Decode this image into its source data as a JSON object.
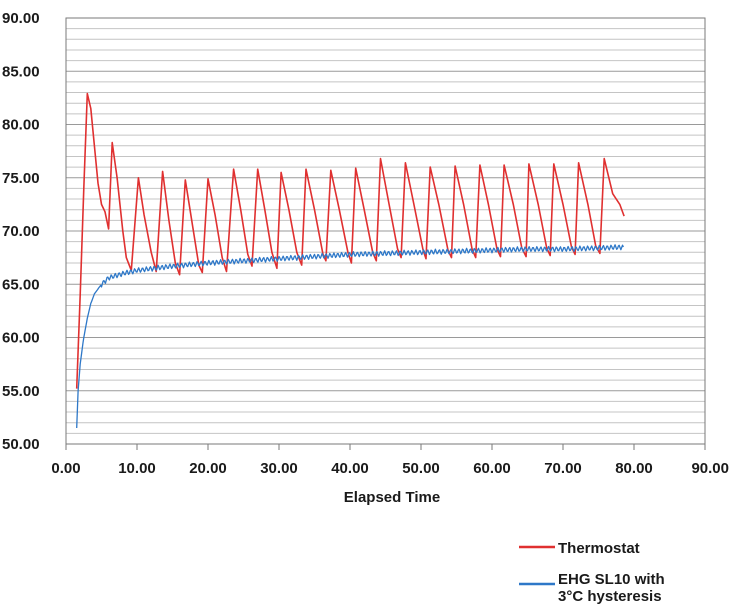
{
  "chart_data": {
    "type": "line",
    "title": "",
    "xlabel": "Elapsed Time",
    "ylabel": "",
    "xlim": [
      0,
      90
    ],
    "ylim": [
      50,
      90
    ],
    "x_major_step": 10,
    "y_major_step": 5,
    "y_minor_step": 1,
    "grid": true,
    "legend_position": "bottom-right",
    "x_tick_labels": [
      "0.00",
      "10.00",
      "20.00",
      "30.00",
      "40.00",
      "50.00",
      "60.00",
      "70.00",
      "80.00",
      "90.00"
    ],
    "y_tick_labels": [
      "50.00",
      "55.00",
      "60.00",
      "65.00",
      "70.00",
      "75.00",
      "80.00",
      "85.00",
      "90.00"
    ],
    "series": [
      {
        "name": "Thermostat",
        "color": "#e03030",
        "points": [
          [
            1.5,
            55.2
          ],
          [
            2.0,
            64.0
          ],
          [
            2.5,
            74.0
          ],
          [
            3.0,
            82.9
          ],
          [
            3.5,
            81.5
          ],
          [
            4.0,
            78.0
          ],
          [
            4.5,
            74.5
          ],
          [
            5.0,
            72.5
          ],
          [
            5.5,
            71.8
          ],
          [
            6.0,
            70.2
          ],
          [
            6.5,
            78.3
          ],
          [
            7.2,
            75.0
          ],
          [
            8.0,
            70.0
          ],
          [
            8.5,
            67.5
          ],
          [
            9.2,
            66.3
          ],
          [
            10.2,
            75.0
          ],
          [
            11.0,
            71.5
          ],
          [
            12.0,
            68.0
          ],
          [
            12.7,
            66.2
          ],
          [
            13.6,
            75.6
          ],
          [
            14.5,
            71.0
          ],
          [
            15.4,
            67.0
          ],
          [
            16.0,
            65.9
          ],
          [
            16.8,
            74.8
          ],
          [
            17.7,
            71.0
          ],
          [
            18.7,
            66.8
          ],
          [
            19.2,
            66.1
          ],
          [
            20.0,
            74.9
          ],
          [
            21.0,
            71.5
          ],
          [
            22.0,
            67.5
          ],
          [
            22.6,
            66.2
          ],
          [
            23.6,
            75.8
          ],
          [
            24.6,
            72.0
          ],
          [
            25.6,
            67.8
          ],
          [
            26.2,
            66.7
          ],
          [
            27.0,
            75.8
          ],
          [
            28.0,
            72.0
          ],
          [
            29.0,
            68.0
          ],
          [
            29.7,
            66.5
          ],
          [
            30.3,
            75.5
          ],
          [
            31.4,
            72.0
          ],
          [
            32.5,
            68.0
          ],
          [
            33.2,
            66.8
          ],
          [
            33.8,
            75.8
          ],
          [
            35.0,
            72.0
          ],
          [
            36.2,
            67.8
          ],
          [
            36.6,
            67.2
          ],
          [
            37.3,
            75.7
          ],
          [
            38.5,
            72.0
          ],
          [
            39.7,
            68.0
          ],
          [
            40.2,
            67.0
          ],
          [
            40.8,
            75.9
          ],
          [
            42.0,
            72.0
          ],
          [
            43.2,
            68.0
          ],
          [
            43.7,
            67.2
          ],
          [
            44.3,
            76.8
          ],
          [
            45.5,
            72.5
          ],
          [
            46.7,
            68.3
          ],
          [
            47.2,
            67.5
          ],
          [
            47.8,
            76.4
          ],
          [
            49.0,
            72.5
          ],
          [
            50.3,
            68.2
          ],
          [
            50.7,
            67.4
          ],
          [
            51.3,
            76.0
          ],
          [
            52.5,
            72.5
          ],
          [
            53.8,
            68.2
          ],
          [
            54.3,
            67.5
          ],
          [
            54.8,
            76.1
          ],
          [
            56.0,
            72.5
          ],
          [
            57.2,
            68.3
          ],
          [
            57.7,
            67.5
          ],
          [
            58.3,
            76.2
          ],
          [
            59.5,
            72.5
          ],
          [
            60.7,
            68.3
          ],
          [
            61.2,
            67.6
          ],
          [
            61.7,
            76.2
          ],
          [
            63.0,
            72.5
          ],
          [
            64.2,
            68.4
          ],
          [
            64.8,
            67.6
          ],
          [
            65.2,
            76.3
          ],
          [
            66.5,
            72.5
          ],
          [
            67.7,
            68.4
          ],
          [
            68.2,
            67.7
          ],
          [
            68.7,
            76.3
          ],
          [
            70.0,
            72.5
          ],
          [
            71.2,
            68.5
          ],
          [
            71.7,
            67.8
          ],
          [
            72.2,
            76.4
          ],
          [
            73.5,
            72.5
          ],
          [
            74.6,
            68.6
          ],
          [
            75.2,
            67.9
          ],
          [
            75.8,
            76.8
          ],
          [
            77.0,
            73.5
          ],
          [
            78.0,
            72.5
          ],
          [
            78.6,
            71.4
          ]
        ]
      },
      {
        "name": "EHG SL10 with 3°C hysteresis",
        "color": "#2e78c8",
        "points": [
          [
            1.5,
            51.5
          ],
          [
            1.7,
            55.0
          ],
          [
            2.0,
            57.5
          ],
          [
            2.5,
            60.0
          ],
          [
            3.0,
            61.8
          ],
          [
            3.5,
            63.2
          ],
          [
            4.0,
            64.1
          ],
          [
            5.0,
            65.0
          ],
          [
            6.0,
            65.6
          ],
          [
            8.0,
            66.0
          ],
          [
            10.0,
            66.3
          ],
          [
            15.0,
            66.7
          ],
          [
            20.0,
            67.0
          ],
          [
            25.0,
            67.2
          ],
          [
            30.0,
            67.4
          ],
          [
            35.0,
            67.6
          ],
          [
            40.0,
            67.8
          ],
          [
            45.0,
            67.9
          ],
          [
            50.0,
            68.0
          ],
          [
            55.0,
            68.1
          ],
          [
            60.0,
            68.2
          ],
          [
            65.0,
            68.3
          ],
          [
            70.0,
            68.3
          ],
          [
            75.0,
            68.4
          ],
          [
            78.5,
            68.5
          ]
        ],
        "ripple_amplitude": 0.5,
        "ripple_period": 0.55,
        "ripple_start": 5.0
      }
    ]
  }
}
